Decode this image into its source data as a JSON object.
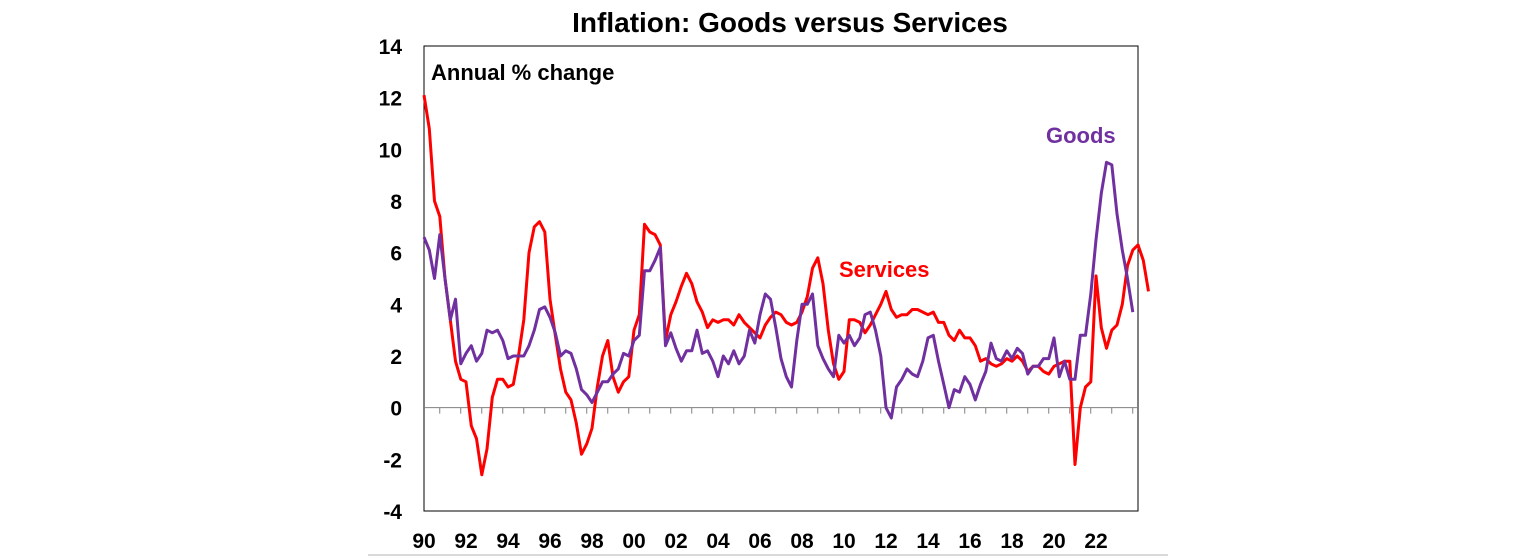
{
  "chart_data": {
    "type": "line",
    "title": "Inflation: Goods versus Services",
    "annotation": "Annual % change",
    "xlabel": "",
    "ylabel": "",
    "ylim": [
      -4,
      14
    ],
    "yticks": [
      "-4",
      "-2",
      "0",
      "2",
      "4",
      "6",
      "8",
      "10",
      "12",
      "14"
    ],
    "xlim": [
      1990,
      2023.75
    ],
    "xticks": [
      "90",
      "92",
      "94",
      "96",
      "98",
      "00",
      "02",
      "04",
      "06",
      "08",
      "10",
      "12",
      "14",
      "16",
      "18",
      "20",
      "22"
    ],
    "x_start": 1990,
    "x_step": 0.25,
    "colors": {
      "goods": "#7030a0",
      "services": "#ff0000"
    },
    "series": [
      {
        "name": "Goods",
        "values": [
          6.6,
          6.1,
          5.0,
          6.7,
          5.0,
          3.4,
          4.2,
          1.7,
          2.1,
          2.4,
          1.8,
          2.1,
          3.0,
          2.9,
          3.0,
          2.6,
          1.9,
          2.0,
          2.0,
          2.0,
          2.4,
          3.0,
          3.8,
          3.9,
          3.5,
          2.9,
          2.0,
          2.2,
          2.1,
          1.5,
          0.7,
          0.5,
          0.2,
          0.6,
          1.0,
          1.0,
          1.3,
          1.5,
          2.1,
          2.0,
          2.6,
          2.8,
          5.3,
          5.3,
          5.7,
          6.2,
          2.4,
          2.9,
          2.3,
          1.8,
          2.2,
          2.2,
          3.0,
          2.1,
          2.2,
          1.8,
          1.2,
          2.0,
          1.7,
          2.2,
          1.7,
          2.0,
          3.0,
          2.5,
          3.6,
          4.4,
          4.2,
          3.1,
          1.9,
          1.2,
          0.8,
          2.6,
          4.0,
          4.0,
          4.4,
          2.4,
          1.9,
          1.5,
          1.2,
          2.8,
          2.5,
          2.8,
          2.4,
          2.7,
          3.6,
          3.7,
          3.0,
          2.0,
          0.0,
          -0.4,
          0.8,
          1.1,
          1.5,
          1.3,
          1.2,
          1.8,
          2.7,
          2.8,
          1.8,
          0.9,
          0.0,
          0.7,
          0.6,
          1.2,
          0.9,
          0.3,
          0.9,
          1.4,
          2.5,
          1.9,
          1.8,
          2.2,
          1.9,
          2.3,
          2.1,
          1.3,
          1.6,
          1.6,
          1.9,
          1.9,
          2.7,
          1.2,
          1.8,
          1.1,
          1.1,
          2.8,
          2.8,
          4.4,
          6.5,
          8.3,
          9.5,
          9.4,
          7.5,
          6.1,
          5.0,
          3.7
        ]
      },
      {
        "name": "Services",
        "values": [
          12.1,
          10.8,
          8.0,
          7.4,
          5.0,
          3.4,
          1.8,
          1.1,
          1.0,
          -0.7,
          -1.2,
          -2.6,
          -1.6,
          0.4,
          1.1,
          1.1,
          0.8,
          0.9,
          2.0,
          3.4,
          6.0,
          7.0,
          7.2,
          6.8,
          4.2,
          2.8,
          1.5,
          0.6,
          0.3,
          -0.6,
          -1.8,
          -1.4,
          -0.8,
          0.8,
          2.0,
          2.6,
          1.2,
          0.6,
          1.0,
          1.2,
          3.0,
          3.6,
          7.1,
          6.8,
          6.7,
          6.3,
          2.6,
          3.6,
          4.1,
          4.7,
          5.2,
          4.8,
          4.1,
          3.7,
          3.1,
          3.4,
          3.3,
          3.4,
          3.4,
          3.2,
          3.6,
          3.3,
          3.1,
          2.9,
          2.7,
          3.2,
          3.5,
          3.7,
          3.6,
          3.3,
          3.2,
          3.3,
          3.7,
          4.3,
          5.4,
          5.8,
          4.8,
          3.0,
          1.7,
          1.1,
          1.4,
          3.4,
          3.4,
          3.3,
          2.9,
          3.2,
          3.6,
          4.0,
          4.5,
          3.8,
          3.5,
          3.6,
          3.6,
          3.8,
          3.8,
          3.7,
          3.6,
          3.7,
          3.3,
          3.3,
          2.8,
          2.6,
          3.0,
          2.7,
          2.7,
          2.4,
          1.8,
          1.9,
          1.7,
          1.6,
          1.7,
          1.9,
          1.8,
          2.0,
          1.8,
          1.4,
          1.6,
          1.6,
          1.4,
          1.3,
          1.6,
          1.7,
          1.8,
          1.8,
          -2.2,
          0.0,
          0.8,
          1.0,
          5.1,
          3.1,
          2.3,
          3.0,
          3.2,
          4.0,
          5.5,
          6.1,
          6.3,
          5.7,
          4.5
        ]
      }
    ],
    "series_labels": {
      "goods": "Goods",
      "services": "Services"
    }
  }
}
